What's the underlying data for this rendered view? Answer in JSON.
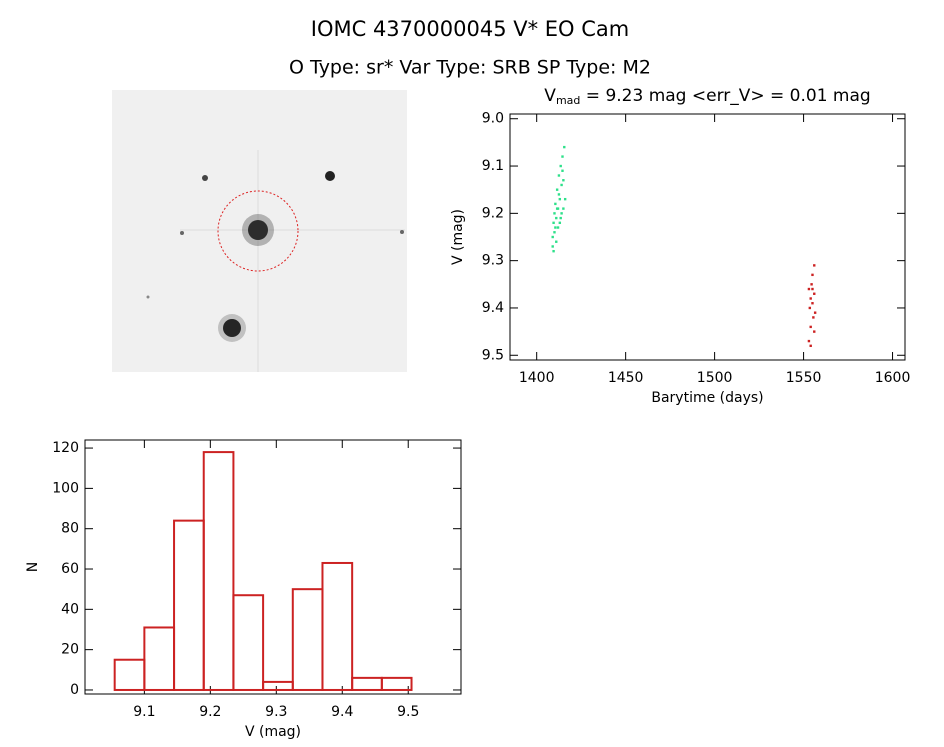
{
  "header": {
    "title": "IOMC 4370000045    V* EO Cam",
    "subtitle": "O Type: sr*  Var Type: SRB  SP Type: M2"
  },
  "chart_data": [
    {
      "type": "scatter",
      "title": [
        "V",
        "mad",
        " = 9.23 mag <err_V> = 0.01 mag"
      ],
      "x_label": "Barytime (days)",
      "y_label": "V (mag)",
      "xlim": [
        1385,
        1607
      ],
      "xticks": [
        1400,
        1450,
        1500,
        1550,
        1600
      ],
      "ylim": [
        8.99,
        9.51
      ],
      "y_reversed": true,
      "yticks": [
        {
          "value": 9,
          "label": "9.0"
        },
        9.1,
        9.2,
        9.3,
        9.4,
        9.5
      ],
      "series": [
        {
          "name": "green",
          "color": "#2ee08a",
          "x": [
            1409,
            1409,
            1409.5,
            1410,
            1410,
            1410.5,
            1411,
            1411,
            1411.5,
            1412,
            1412,
            1412.5,
            1413,
            1413,
            1413.5,
            1414,
            1414,
            1414.5,
            1415,
            1415,
            1415.5,
            1416,
            1409.5,
            1410.5,
            1411.5,
            1412.5,
            1413.5,
            1414.5
          ],
          "values": [
            9.25,
            9.27,
            9.22,
            9.2,
            9.24,
            9.18,
            9.21,
            9.26,
            9.15,
            9.19,
            9.23,
            9.12,
            9.17,
            9.22,
            9.1,
            9.14,
            9.2,
            9.08,
            9.13,
            9.19,
            9.06,
            9.17,
            9.28,
            9.23,
            9.19,
            9.16,
            9.21,
            9.11
          ]
        },
        {
          "name": "red",
          "color": "#cc2222",
          "x": [
            1553,
            1553,
            1553.5,
            1554,
            1554,
            1554.5,
            1555,
            1555,
            1555.5,
            1556,
            1556,
            1556.5,
            1554,
            1555,
            1556
          ],
          "values": [
            9.36,
            9.47,
            9.4,
            9.38,
            9.44,
            9.35,
            9.39,
            9.33,
            9.42,
            9.37,
            9.31,
            9.41,
            9.48,
            9.36,
            9.45
          ]
        }
      ]
    },
    {
      "type": "histogram",
      "x_label": "V (mag)",
      "y_label": "N",
      "color": "#cc2222",
      "bins": [
        9.055,
        9.1,
        9.145,
        9.19,
        9.235,
        9.28,
        9.325,
        9.37,
        9.415,
        9.46,
        9.505
      ],
      "values": [
        15,
        31,
        84,
        118,
        47,
        4,
        50,
        63,
        6,
        6
      ],
      "xlim": [
        9.01,
        9.58
      ],
      "xticks": [
        9.1,
        9.2,
        9.3,
        9.4,
        9.5
      ],
      "ylim": [
        -2,
        124
      ],
      "yticks": [
        0,
        20,
        40,
        60,
        80,
        100,
        120
      ]
    }
  ]
}
